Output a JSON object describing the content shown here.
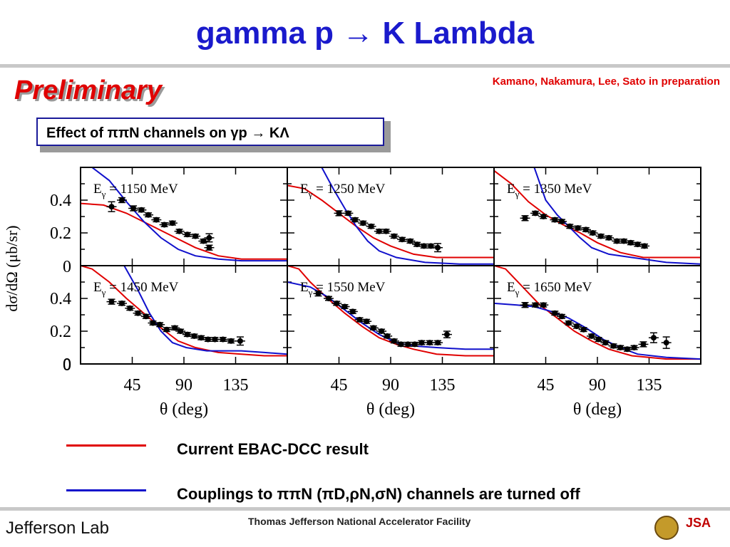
{
  "slide": {
    "title": "gamma p → K Lambda",
    "preliminary": "Preliminary",
    "credit": "Kamano, Nakamura, Lee, Sato in preparation",
    "effect_box": "Effect of ππN channels on γp → KΛ"
  },
  "legend": [
    {
      "color": "#e00000",
      "label": "Current EBAC-DCC result"
    },
    {
      "color": "#1010cc",
      "label": "Couplings to ππN (πD,ρN,σN) channels are turned off"
    }
  ],
  "footer": {
    "lab": "Jefferson Lab",
    "facility": "Thomas Jefferson National Accelerator Facility",
    "logo_right_text": "JSA"
  },
  "chart_data": {
    "type": "scatter",
    "ylabel": "dσ/dΩ (μb/sr)",
    "xlabel": "θ (deg)",
    "xlim": [
      0,
      180
    ],
    "ylim": [
      0,
      0.6
    ],
    "xticks": [
      45,
      90,
      135
    ],
    "yticks": [
      0,
      0.2,
      0.4
    ],
    "colors": {
      "red": "#e00000",
      "blue": "#1010cc",
      "points": "#000000"
    },
    "panels": [
      {
        "label": "E_γ = 1150 MeV",
        "data": {
          "x": [
            27,
            36,
            46,
            53,
            59,
            66,
            73,
            80,
            86,
            93,
            100,
            107,
            112
          ],
          "y": [
            0.36,
            0.4,
            0.35,
            0.34,
            0.31,
            0.28,
            0.25,
            0.26,
            0.21,
            0.19,
            0.18,
            0.15,
            0.11
          ],
          "err": [
            0.03,
            0.015,
            0.015,
            0.012,
            0.012,
            0.012,
            0.012,
            0.012,
            0.012,
            0.012,
            0.012,
            0.012,
            0.015
          ]
        },
        "extra_point": {
          "x": 112,
          "y": 0.17,
          "err": 0.025
        },
        "red": [
          [
            0,
            0.38
          ],
          [
            20,
            0.37
          ],
          [
            40,
            0.32
          ],
          [
            60,
            0.25
          ],
          [
            80,
            0.18
          ],
          [
            100,
            0.11
          ],
          [
            120,
            0.06
          ],
          [
            140,
            0.04
          ],
          [
            160,
            0.04
          ],
          [
            180,
            0.04
          ]
        ],
        "blue": [
          [
            10,
            0.6
          ],
          [
            25,
            0.52
          ],
          [
            40,
            0.39
          ],
          [
            55,
            0.27
          ],
          [
            70,
            0.17
          ],
          [
            85,
            0.1
          ],
          [
            100,
            0.06
          ],
          [
            120,
            0.04
          ],
          [
            140,
            0.03
          ],
          [
            180,
            0.03
          ]
        ]
      },
      {
        "label": "E_γ = 1250 MeV",
        "data": {
          "x": [
            45,
            53,
            59,
            66,
            73,
            80,
            86,
            93,
            100,
            107,
            113,
            119,
            125,
            131
          ],
          "y": [
            0.32,
            0.32,
            0.28,
            0.26,
            0.24,
            0.21,
            0.21,
            0.18,
            0.16,
            0.15,
            0.13,
            0.12,
            0.12,
            0.11
          ],
          "err": [
            0.015,
            0.012,
            0.012,
            0.012,
            0.012,
            0.012,
            0.012,
            0.012,
            0.012,
            0.012,
            0.012,
            0.012,
            0.012,
            0.025
          ]
        },
        "red": [
          [
            0,
            0.49
          ],
          [
            15,
            0.47
          ],
          [
            30,
            0.4
          ],
          [
            45,
            0.32
          ],
          [
            60,
            0.24
          ],
          [
            75,
            0.17
          ],
          [
            90,
            0.12
          ],
          [
            110,
            0.07
          ],
          [
            130,
            0.05
          ],
          [
            150,
            0.05
          ],
          [
            180,
            0.05
          ]
        ],
        "blue": [
          [
            30,
            0.6
          ],
          [
            40,
            0.47
          ],
          [
            50,
            0.35
          ],
          [
            60,
            0.24
          ],
          [
            70,
            0.15
          ],
          [
            80,
            0.09
          ],
          [
            95,
            0.05
          ],
          [
            120,
            0.02
          ],
          [
            150,
            0.01
          ],
          [
            180,
            0.01
          ]
        ]
      },
      {
        "label": "E_γ = 1350 MeV",
        "data": {
          "x": [
            27,
            36,
            43,
            53,
            59,
            66,
            73,
            80,
            86,
            93,
            100,
            107,
            113,
            119,
            125,
            131
          ],
          "y": [
            0.29,
            0.32,
            0.3,
            0.28,
            0.27,
            0.24,
            0.23,
            0.22,
            0.2,
            0.18,
            0.17,
            0.15,
            0.15,
            0.14,
            0.13,
            0.12
          ],
          "err": [
            0.015,
            0.012,
            0.012,
            0.012,
            0.012,
            0.012,
            0.012,
            0.012,
            0.012,
            0.012,
            0.012,
            0.012,
            0.012,
            0.012,
            0.012,
            0.012
          ]
        },
        "red": [
          [
            0,
            0.58
          ],
          [
            15,
            0.5
          ],
          [
            30,
            0.39
          ],
          [
            45,
            0.31
          ],
          [
            60,
            0.25
          ],
          [
            75,
            0.2
          ],
          [
            90,
            0.14
          ],
          [
            110,
            0.08
          ],
          [
            130,
            0.05
          ],
          [
            150,
            0.05
          ],
          [
            180,
            0.05
          ]
        ],
        "blue": [
          [
            35,
            0.6
          ],
          [
            45,
            0.4
          ],
          [
            55,
            0.31
          ],
          [
            65,
            0.24
          ],
          [
            75,
            0.17
          ],
          [
            85,
            0.11
          ],
          [
            100,
            0.07
          ],
          [
            120,
            0.05
          ],
          [
            150,
            0.02
          ],
          [
            180,
            0.01
          ]
        ]
      },
      {
        "label": "E_γ = 1450 MeV",
        "data": {
          "x": [
            27,
            36,
            43,
            50,
            57,
            63,
            69,
            75,
            82,
            87,
            93,
            99,
            105,
            111,
            117,
            124,
            131,
            139
          ],
          "y": [
            0.38,
            0.37,
            0.34,
            0.31,
            0.29,
            0.25,
            0.24,
            0.21,
            0.22,
            0.2,
            0.18,
            0.17,
            0.16,
            0.15,
            0.15,
            0.15,
            0.14,
            0.14
          ],
          "err": [
            0.015,
            0.012,
            0.012,
            0.012,
            0.012,
            0.012,
            0.012,
            0.012,
            0.012,
            0.012,
            0.012,
            0.012,
            0.012,
            0.012,
            0.012,
            0.012,
            0.012,
            0.025
          ]
        },
        "red": [
          [
            0,
            0.6
          ],
          [
            10,
            0.58
          ],
          [
            25,
            0.5
          ],
          [
            40,
            0.4
          ],
          [
            55,
            0.31
          ],
          [
            70,
            0.22
          ],
          [
            85,
            0.14
          ],
          [
            100,
            0.1
          ],
          [
            120,
            0.07
          ],
          [
            140,
            0.06
          ],
          [
            160,
            0.05
          ],
          [
            180,
            0.05
          ]
        ],
        "blue": [
          [
            38,
            0.6
          ],
          [
            50,
            0.45
          ],
          [
            60,
            0.31
          ],
          [
            70,
            0.2
          ],
          [
            80,
            0.13
          ],
          [
            92,
            0.1
          ],
          [
            110,
            0.08
          ],
          [
            140,
            0.08
          ],
          [
            160,
            0.07
          ],
          [
            180,
            0.06
          ]
        ]
      },
      {
        "label": "E_γ = 1550 MeV",
        "data": {
          "x": [
            27,
            36,
            43,
            50,
            57,
            63,
            69,
            75,
            82,
            87,
            93,
            99,
            105,
            111,
            117,
            124,
            131,
            139
          ],
          "y": [
            0.43,
            0.4,
            0.37,
            0.35,
            0.32,
            0.27,
            0.26,
            0.22,
            0.2,
            0.17,
            0.14,
            0.12,
            0.12,
            0.12,
            0.13,
            0.13,
            0.13,
            0.18
          ],
          "err": [
            0.015,
            0.012,
            0.012,
            0.012,
            0.012,
            0.012,
            0.012,
            0.012,
            0.012,
            0.012,
            0.012,
            0.012,
            0.012,
            0.012,
            0.012,
            0.012,
            0.012,
            0.02
          ]
        },
        "red": [
          [
            0,
            0.6
          ],
          [
            10,
            0.58
          ],
          [
            20,
            0.5
          ],
          [
            35,
            0.4
          ],
          [
            50,
            0.31
          ],
          [
            65,
            0.23
          ],
          [
            80,
            0.16
          ],
          [
            95,
            0.12
          ],
          [
            110,
            0.09
          ],
          [
            130,
            0.06
          ],
          [
            155,
            0.05
          ],
          [
            180,
            0.05
          ]
        ],
        "blue": [
          [
            0,
            0.5
          ],
          [
            20,
            0.47
          ],
          [
            35,
            0.41
          ],
          [
            50,
            0.33
          ],
          [
            65,
            0.25
          ],
          [
            80,
            0.18
          ],
          [
            95,
            0.13
          ],
          [
            110,
            0.11
          ],
          [
            130,
            0.1
          ],
          [
            155,
            0.09
          ],
          [
            180,
            0.09
          ]
        ]
      },
      {
        "label": "E_γ = 1650 MeV",
        "data": {
          "x": [
            27,
            36,
            43,
            53,
            59,
            65,
            72,
            78,
            85,
            91,
            97,
            104,
            110,
            116,
            122,
            130,
            139
          ],
          "y": [
            0.36,
            0.36,
            0.36,
            0.31,
            0.29,
            0.25,
            0.23,
            0.21,
            0.17,
            0.15,
            0.13,
            0.11,
            0.1,
            0.09,
            0.1,
            0.12,
            0.16
          ],
          "err": [
            0.015,
            0.012,
            0.012,
            0.012,
            0.012,
            0.012,
            0.012,
            0.012,
            0.012,
            0.012,
            0.012,
            0.012,
            0.012,
            0.012,
            0.012,
            0.015,
            0.03
          ]
        },
        "extra_point": {
          "x": 150,
          "y": 0.13,
          "err": 0.035
        },
        "red": [
          [
            0,
            0.6
          ],
          [
            10,
            0.58
          ],
          [
            25,
            0.47
          ],
          [
            40,
            0.36
          ],
          [
            55,
            0.28
          ],
          [
            70,
            0.2
          ],
          [
            85,
            0.14
          ],
          [
            100,
            0.09
          ],
          [
            120,
            0.05
          ],
          [
            150,
            0.03
          ],
          [
            180,
            0.03
          ]
        ],
        "blue": [
          [
            0,
            0.37
          ],
          [
            20,
            0.36
          ],
          [
            35,
            0.35
          ],
          [
            50,
            0.32
          ],
          [
            65,
            0.28
          ],
          [
            80,
            0.22
          ],
          [
            95,
            0.15
          ],
          [
            110,
            0.1
          ],
          [
            125,
            0.06
          ],
          [
            150,
            0.04
          ],
          [
            180,
            0.03
          ]
        ]
      }
    ]
  }
}
